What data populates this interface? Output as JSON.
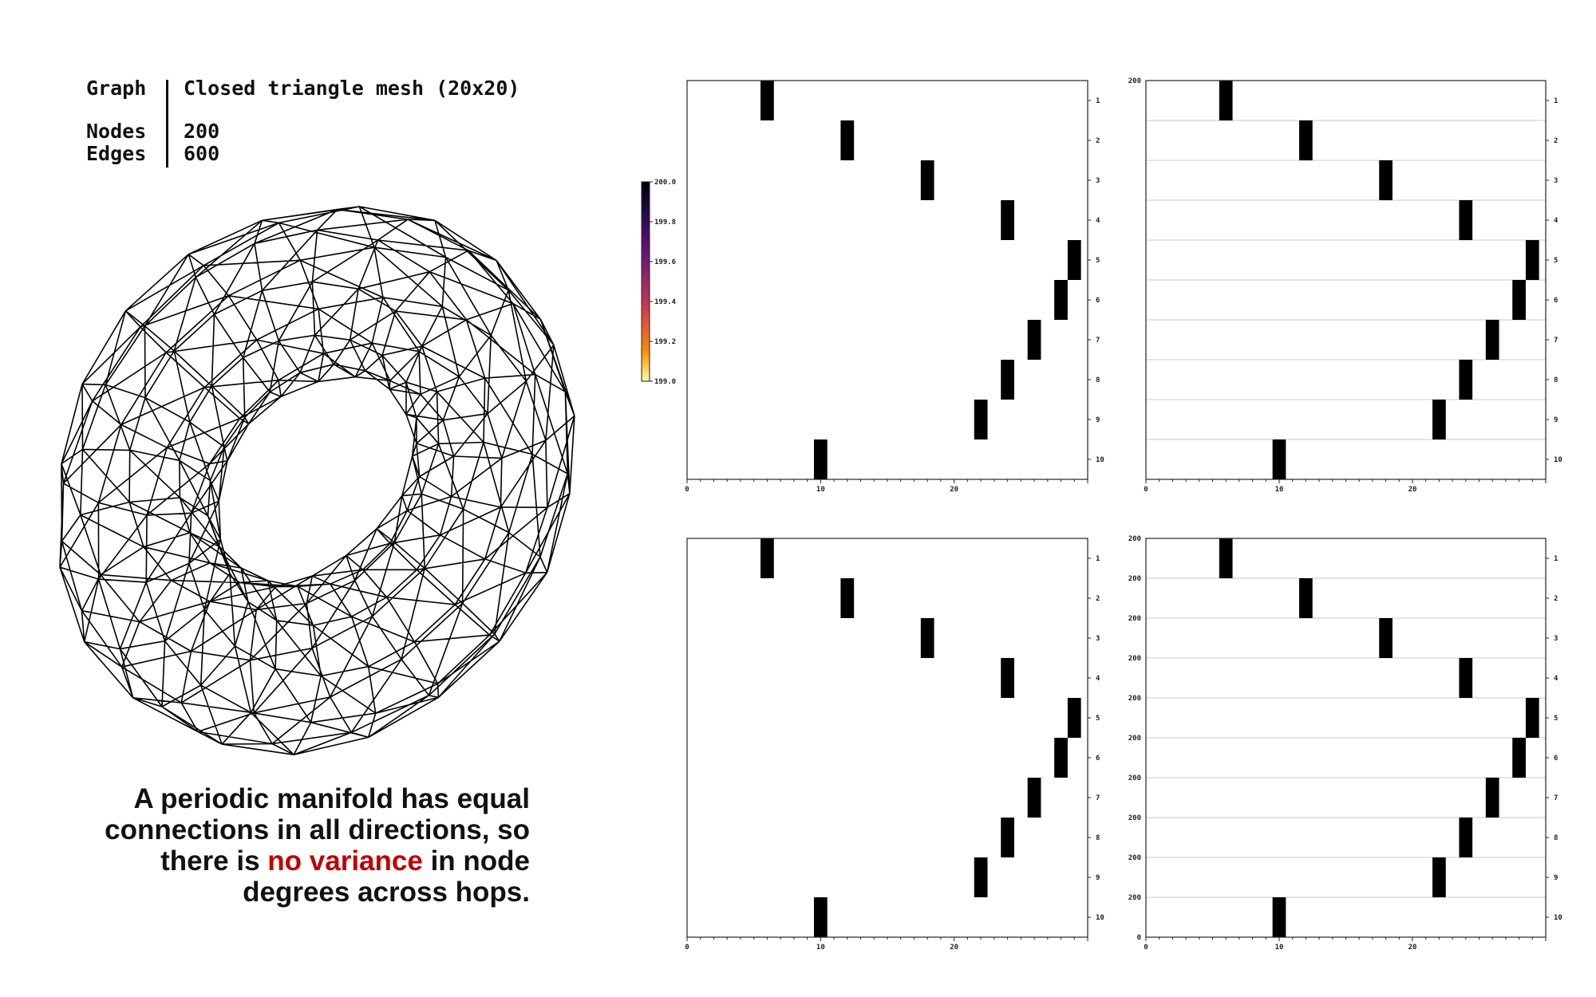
{
  "info": {
    "graph_key": "Graph",
    "graph_value": "Closed triangle mesh (20x20)",
    "nodes_key": "Nodes",
    "nodes_value": "200",
    "edges_key": "Edges",
    "edges_value": "600"
  },
  "caption": {
    "line1": "A periodic manifold has equal",
    "line2": "connections in all directions, so",
    "line3_before": "there is ",
    "line3_highlight": "no variance",
    "line3_after": " in node",
    "line4": "degrees across hops.",
    "highlight_color": "#c00000"
  },
  "colorbar": {
    "ticks": [
      "200.0",
      "199.8",
      "199.6",
      "199.4",
      "199.2",
      "199.0"
    ],
    "colormap": "inferno"
  },
  "chart_data": [
    {
      "type": "heatmap",
      "panel": "top-left",
      "x_ticks": [
        "0",
        "10",
        "20"
      ],
      "y_ticks": [
        "1",
        "2",
        "3",
        "4",
        "5",
        "6",
        "7",
        "8",
        "9",
        "10"
      ],
      "y_left_ticks": [],
      "xlim": [
        0,
        30
      ],
      "row_lines": false,
      "hops": [
        1,
        2,
        3,
        4,
        5,
        6,
        7,
        8,
        9,
        10
      ],
      "degree_bins": [
        6,
        12,
        18,
        24,
        29,
        28,
        26,
        24,
        22,
        10
      ],
      "value": 200
    },
    {
      "type": "heatmap",
      "panel": "top-right",
      "x_ticks": [
        "0",
        "10",
        "20"
      ],
      "y_ticks": [
        "1",
        "2",
        "3",
        "4",
        "5",
        "6",
        "7",
        "8",
        "9",
        "10"
      ],
      "y_left_ticks": [
        "200"
      ],
      "xlim": [
        0,
        30
      ],
      "row_lines": true,
      "hops": [
        1,
        2,
        3,
        4,
        5,
        6,
        7,
        8,
        9,
        10
      ],
      "degree_bins": [
        6,
        12,
        18,
        24,
        29,
        28,
        26,
        24,
        22,
        10
      ],
      "value": 200
    },
    {
      "type": "heatmap",
      "panel": "bottom-left",
      "x_ticks": [
        "0",
        "10",
        "20"
      ],
      "y_ticks": [
        "1",
        "2",
        "3",
        "4",
        "5",
        "6",
        "7",
        "8",
        "9",
        "10"
      ],
      "y_left_ticks": [],
      "xlim": [
        0,
        30
      ],
      "row_lines": false,
      "hops": [
        1,
        2,
        3,
        4,
        5,
        6,
        7,
        8,
        9,
        10
      ],
      "degree_bins": [
        6,
        12,
        18,
        24,
        29,
        28,
        26,
        24,
        22,
        10
      ],
      "value": 200
    },
    {
      "type": "bar",
      "panel": "bottom-right",
      "x_ticks": [
        "0",
        "10",
        "20"
      ],
      "y_ticks": [
        "1",
        "2",
        "3",
        "4",
        "5",
        "6",
        "7",
        "8",
        "9",
        "10"
      ],
      "y_left_ticks": [
        "200",
        "200",
        "200",
        "200",
        "200",
        "200",
        "200",
        "200",
        "200",
        "200",
        "0"
      ],
      "xlim": [
        0,
        30
      ],
      "row_lines": true,
      "hops": [
        1,
        2,
        3,
        4,
        5,
        6,
        7,
        8,
        9,
        10
      ],
      "degree_bins": [
        6,
        12,
        18,
        24,
        29,
        28,
        26,
        24,
        22,
        10
      ],
      "value": 200
    }
  ]
}
